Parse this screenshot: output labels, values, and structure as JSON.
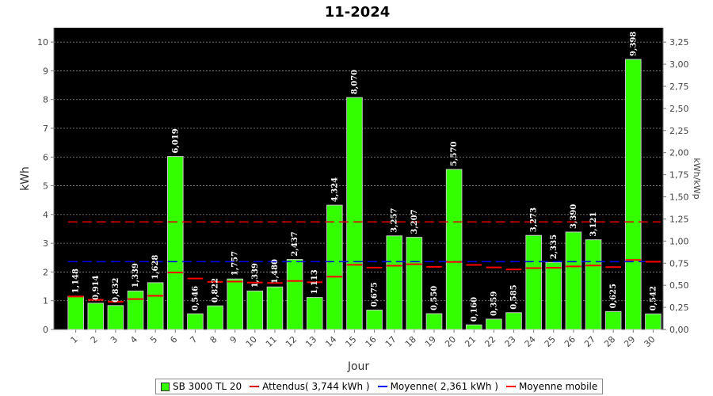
{
  "chart_data": {
    "type": "bar",
    "title": "11-2024",
    "xlabel": "Jour",
    "ylabel": "kWh",
    "y2label": "kWh/kWp",
    "categories": [
      "1",
      "2",
      "3",
      "4",
      "5",
      "6",
      "7",
      "8",
      "9",
      "10",
      "11",
      "12",
      "13",
      "14",
      "15",
      "16",
      "17",
      "18",
      "19",
      "20",
      "21",
      "22",
      "23",
      "24",
      "25",
      "26",
      "27",
      "28",
      "29",
      "30"
    ],
    "series": [
      {
        "name": "SB 3000 TL 20",
        "type": "bar",
        "color": "#33ff00",
        "values": [
          1.148,
          0.914,
          0.832,
          1.339,
          1.628,
          6.019,
          0.546,
          0.822,
          1.757,
          1.339,
          1.48,
          2.437,
          1.113,
          4.324,
          8.07,
          0.675,
          3.257,
          3.207,
          0.55,
          5.57,
          0.16,
          0.359,
          0.585,
          3.273,
          2.335,
          3.39,
          3.121,
          0.625,
          9.398,
          0.542
        ],
        "labels": [
          "1,148",
          "0,914",
          "0,832",
          "1,339",
          "1,628",
          "6,019",
          "0,546",
          "0,822",
          "1,757",
          "1,339",
          "1,480",
          "2,437",
          "1,113",
          "4,324",
          "8,070",
          "0,675",
          "3,257",
          "3,207",
          "0,550",
          "5,570",
          "0,160",
          "0,359",
          "0,585",
          "3,273",
          "2,335",
          "3,390",
          "3,121",
          "0,625",
          "9,398",
          "0,542"
        ]
      },
      {
        "name": "Attendus( 3,744 kWh )",
        "type": "hline",
        "color": "#dd0000",
        "value": 3.744
      },
      {
        "name": "Moyenne( 2,361 kWh )",
        "type": "hline",
        "color": "#0000ee",
        "value": 2.361
      },
      {
        "name": "Moyenne mobile",
        "type": "step",
        "color": "#ff0000",
        "values": [
          1.148,
          1.031,
          0.965,
          1.058,
          1.172,
          1.98,
          1.775,
          1.656,
          1.667,
          1.634,
          1.62,
          1.688,
          1.644,
          1.835,
          2.251,
          2.152,
          2.217,
          2.27,
          2.18,
          2.349,
          2.245,
          2.159,
          2.088,
          2.137,
          2.145,
          2.193,
          2.227,
          2.17,
          2.419,
          2.357
        ]
      }
    ],
    "y_ticks": [
      "0",
      "1",
      "2",
      "3",
      "4",
      "5",
      "6",
      "7",
      "8",
      "9",
      "10"
    ],
    "y2_ticks": [
      "0,00",
      "0,25",
      "0,50",
      "0,75",
      "1,00",
      "1,25",
      "1,50",
      "1,75",
      "2,00",
      "2,25",
      "2,50",
      "2,75",
      "3,00",
      "3,25"
    ],
    "ylim": [
      0,
      10.5
    ],
    "y2lim": [
      0,
      3.4125
    ],
    "grid": true,
    "legend_position": "bottom"
  },
  "colors": {
    "plot_background": "#000000",
    "bar": "#33ff00",
    "expected_line": "#dd0000",
    "average_line": "#0000ee",
    "moving_average": "#ff0000"
  }
}
